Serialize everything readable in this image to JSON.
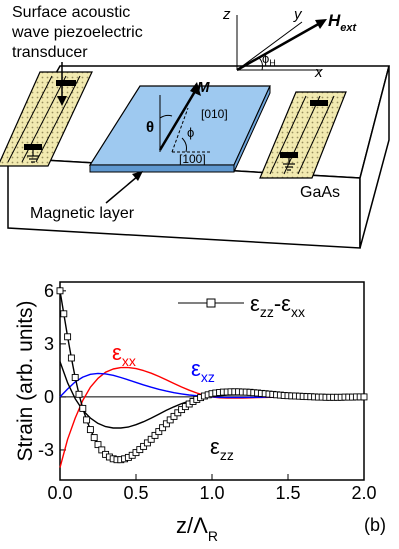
{
  "diagram": {
    "label_transducer_line1": "Surface acoustic",
    "label_transducer_line2": "wave piezoelectric",
    "label_transducer_line3": "transducer",
    "label_magnetic_layer": "Magnetic layer",
    "label_substrate": "GaAs",
    "label_M": "M",
    "label_theta": "θ",
    "label_phi": "ϕ",
    "label_dir_010": "[010]",
    "label_dir_100": "[100]",
    "axis_z": "z",
    "axis_y": "y",
    "axis_x": "x",
    "label_H_main": "H",
    "label_H_sub": "ext",
    "label_phi_H_main": "ϕ",
    "label_phi_H_sub": "H",
    "colors": {
      "layer": "#9ec9f0",
      "electrode": "#f2eab0"
    }
  },
  "chart_data": {
    "type": "line",
    "ylabel": "Strain (arb. units)",
    "xlabel_main": "z/Λ",
    "xlabel_sub": "R",
    "xlim": [
      0,
      2
    ],
    "ylim": [
      -4.7,
      6.5
    ],
    "x_ticks": [
      "0.0",
      "0.5",
      "1.0",
      "1.5",
      "2.0"
    ],
    "y_ticks": [
      "-3",
      "0",
      "3",
      "6"
    ],
    "x_tick_values": [
      0,
      0.5,
      1,
      1.5,
      2
    ],
    "y_tick_values": [
      -3,
      0,
      3,
      6
    ],
    "panel_label": "(b)",
    "legend": {
      "main": "ε",
      "sub1": "zz",
      "minus": "-",
      "sub2": "xx"
    },
    "curve_labels": {
      "exx": {
        "main": "ε",
        "sub": "xx"
      },
      "exz": {
        "main": "ε",
        "sub": "xz"
      },
      "ezz": {
        "main": "ε",
        "sub": "zz"
      }
    },
    "series": [
      {
        "key": "exx",
        "color": "#ff0000",
        "marker": "none",
        "x": [
          0,
          0.05,
          0.1,
          0.15,
          0.2,
          0.25,
          0.3,
          0.35,
          0.4,
          0.45,
          0.5,
          0.55,
          0.6,
          0.65,
          0.7,
          0.75,
          0.8,
          0.85,
          0.9,
          0.95,
          1.0,
          1.05,
          1.1,
          1.15,
          1.2,
          1.3,
          1.4,
          1.5,
          1.6,
          1.8,
          2.0
        ],
        "y": [
          -4.0,
          -2.4,
          -1.2,
          -0.2,
          0.55,
          1.05,
          1.4,
          1.58,
          1.66,
          1.66,
          1.6,
          1.49,
          1.34,
          1.16,
          0.96,
          0.76,
          0.56,
          0.38,
          0.22,
          0.09,
          0.0,
          -0.05,
          -0.07,
          -0.07,
          -0.06,
          -0.04,
          -0.02,
          -0.01,
          0.0,
          0.0,
          0.0
        ]
      },
      {
        "key": "exz",
        "color": "#0000ff",
        "marker": "none",
        "x": [
          0,
          0.05,
          0.1,
          0.15,
          0.2,
          0.25,
          0.3,
          0.35,
          0.4,
          0.45,
          0.5,
          0.55,
          0.6,
          0.65,
          0.7,
          0.75,
          0.8,
          0.85,
          0.9,
          0.95,
          1.0,
          1.05,
          1.1,
          1.2,
          1.3,
          1.4,
          1.5,
          1.7,
          2.0
        ],
        "y": [
          0.0,
          0.45,
          0.85,
          1.12,
          1.28,
          1.33,
          1.3,
          1.22,
          1.1,
          0.96,
          0.82,
          0.68,
          0.55,
          0.43,
          0.33,
          0.24,
          0.17,
          0.11,
          0.07,
          0.03,
          0.0,
          -0.02,
          -0.03,
          -0.03,
          -0.02,
          -0.01,
          0.0,
          0.0,
          0.0
        ]
      },
      {
        "key": "ezz",
        "color": "#000000",
        "marker": "none",
        "x": [
          0,
          0.05,
          0.1,
          0.15,
          0.2,
          0.25,
          0.3,
          0.35,
          0.4,
          0.45,
          0.5,
          0.55,
          0.6,
          0.65,
          0.7,
          0.75,
          0.8,
          0.85,
          0.9,
          0.95,
          1.0,
          1.1,
          1.2,
          1.3,
          1.4,
          1.5,
          1.6,
          1.7,
          1.8,
          1.9,
          2.0
        ],
        "y": [
          2.0,
          0.8,
          -0.1,
          -0.75,
          -1.2,
          -1.5,
          -1.68,
          -1.76,
          -1.76,
          -1.7,
          -1.57,
          -1.4,
          -1.2,
          -0.98,
          -0.76,
          -0.56,
          -0.38,
          -0.23,
          -0.11,
          -0.03,
          0.03,
          0.1,
          0.12,
          0.11,
          0.08,
          0.05,
          0.03,
          0.02,
          0.01,
          0.0,
          0.0
        ]
      },
      {
        "key": "ezz_minus_exx",
        "color": "#000000",
        "marker": "square",
        "x": [
          0,
          0.025,
          0.05,
          0.075,
          0.1,
          0.125,
          0.15,
          0.175,
          0.2,
          0.225,
          0.25,
          0.275,
          0.3,
          0.325,
          0.35,
          0.375,
          0.4,
          0.425,
          0.45,
          0.475,
          0.5,
          0.525,
          0.55,
          0.575,
          0.6,
          0.625,
          0.65,
          0.675,
          0.7,
          0.725,
          0.75,
          0.775,
          0.8,
          0.825,
          0.85,
          0.875,
          0.9,
          0.925,
          0.95,
          0.975,
          1.0,
          1.025,
          1.05,
          1.075,
          1.1,
          1.125,
          1.15,
          1.175,
          1.2,
          1.225,
          1.25,
          1.275,
          1.3,
          1.325,
          1.35,
          1.375,
          1.4,
          1.425,
          1.45,
          1.475,
          1.5,
          1.525,
          1.55,
          1.575,
          1.6,
          1.625,
          1.65,
          1.675,
          1.7,
          1.725,
          1.75,
          1.775,
          1.8,
          1.825,
          1.85,
          1.875,
          1.9,
          1.925,
          1.95,
          1.975,
          2.0
        ],
        "y": [
          6.0,
          4.7,
          3.4,
          2.2,
          1.1,
          0.15,
          -0.65,
          -1.3,
          -1.85,
          -2.3,
          -2.7,
          -3.0,
          -3.25,
          -3.4,
          -3.5,
          -3.55,
          -3.55,
          -3.5,
          -3.42,
          -3.3,
          -3.15,
          -2.98,
          -2.8,
          -2.6,
          -2.4,
          -2.18,
          -1.96,
          -1.74,
          -1.52,
          -1.3,
          -1.1,
          -0.9,
          -0.72,
          -0.55,
          -0.4,
          -0.26,
          -0.14,
          -0.04,
          0.05,
          0.12,
          0.18,
          0.22,
          0.25,
          0.27,
          0.28,
          0.29,
          0.29,
          0.29,
          0.28,
          0.27,
          0.26,
          0.24,
          0.22,
          0.2,
          0.18,
          0.16,
          0.14,
          0.12,
          0.1,
          0.08,
          0.07,
          0.06,
          0.05,
          0.04,
          0.03,
          0.02,
          0.01,
          0.0,
          -0.01,
          -0.01,
          -0.02,
          -0.02,
          -0.02,
          -0.02,
          -0.02,
          -0.01,
          -0.01,
          -0.01,
          0.0,
          0.0,
          0.0
        ]
      }
    ]
  }
}
